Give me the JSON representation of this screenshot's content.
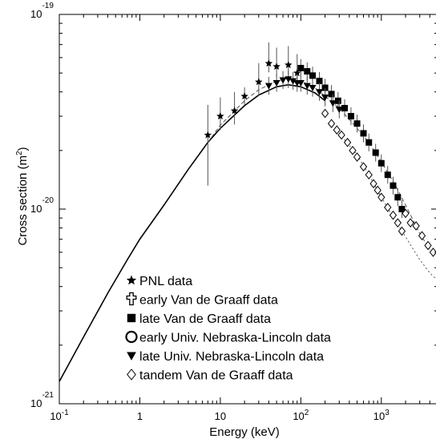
{
  "chart_data": {
    "type": "scatter",
    "xlabel": "Energy (keV)",
    "ylabel_main": "Cross section (m",
    "ylabel_sup": "2",
    "ylabel_close": ")",
    "x_scale": "log",
    "y_scale": "log",
    "xlim": [
      0.1,
      5000
    ],
    "ylim": [
      1e-21,
      1e-19
    ],
    "grid": false,
    "legend_position": "bottom-center",
    "x_ticks": [
      {
        "value": 0.1,
        "base": "10",
        "exp": "-1"
      },
      {
        "value": 1,
        "base": "1",
        "exp": ""
      },
      {
        "value": 10,
        "base": "10",
        "exp": ""
      },
      {
        "value": 100,
        "base": "10",
        "exp": "2"
      },
      {
        "value": 1000,
        "base": "10",
        "exp": "3"
      }
    ],
    "y_ticks": [
      {
        "value": 1e-19,
        "base": "10",
        "exp": "-19"
      },
      {
        "value": 1e-20,
        "base": "10",
        "exp": "-20"
      },
      {
        "value": 1e-21,
        "base": "10",
        "exp": "-21"
      }
    ],
    "series": [
      {
        "name": "PNL data",
        "marker": "star",
        "points": [
          {
            "x": 7,
            "y": 2.4e-20,
            "err": [
              0.55,
              0.7
            ]
          },
          {
            "x": 10,
            "y": 3e-20,
            "err": [
              0.85,
              0.8
            ]
          },
          {
            "x": 15,
            "y": 3.2e-20,
            "err": [
              0.85,
              0.8
            ]
          },
          {
            "x": 20,
            "y": 3.8e-20
          },
          {
            "x": 30,
            "y": 4.5e-20,
            "err": [
              0.85,
              0.8
            ]
          },
          {
            "x": 40,
            "y": 5.6e-20,
            "err": [
              0.9,
              0.78
            ]
          },
          {
            "x": 50,
            "y": 5.4e-20,
            "err": [
              0.88,
              0.8
            ]
          },
          {
            "x": 70,
            "y": 5.5e-20,
            "err": [
              0.85,
              0.8
            ]
          },
          {
            "x": 90,
            "y": 5e-20,
            "err": [
              0.85,
              0.8
            ]
          }
        ]
      },
      {
        "name": "early Van de Graaff data",
        "marker": "cross",
        "points": []
      },
      {
        "name": "late Van de Graaff data",
        "marker": "square",
        "points": [
          {
            "x": 100,
            "y": 5.3e-20
          },
          {
            "x": 120,
            "y": 5.1e-20
          },
          {
            "x": 140,
            "y": 4.85e-20
          },
          {
            "x": 170,
            "y": 4.55e-20
          },
          {
            "x": 200,
            "y": 4.2e-20
          },
          {
            "x": 240,
            "y": 3.9e-20
          },
          {
            "x": 290,
            "y": 3.6e-20
          },
          {
            "x": 350,
            "y": 3.3e-20
          },
          {
            "x": 420,
            "y": 3e-20
          },
          {
            "x": 500,
            "y": 2.75e-20
          },
          {
            "x": 600,
            "y": 2.45e-20
          },
          {
            "x": 700,
            "y": 2.2e-20
          },
          {
            "x": 850,
            "y": 1.95e-20
          },
          {
            "x": 1000,
            "y": 1.72e-20
          },
          {
            "x": 1200,
            "y": 1.5e-20
          },
          {
            "x": 1400,
            "y": 1.32e-20
          },
          {
            "x": 1600,
            "y": 1.15e-20
          },
          {
            "x": 1800,
            "y": 1e-20
          }
        ]
      },
      {
        "name": "early Univ. Nebraska-Lincoln data",
        "marker": "circle",
        "points": []
      },
      {
        "name": "late Univ. Nebraska-Lincoln data",
        "marker": "triangle-down",
        "points": [
          {
            "x": 40,
            "y": 4.3e-20
          },
          {
            "x": 50,
            "y": 4.45e-20
          },
          {
            "x": 60,
            "y": 4.6e-20
          },
          {
            "x": 70,
            "y": 4.65e-20
          },
          {
            "x": 80,
            "y": 4.55e-20
          },
          {
            "x": 90,
            "y": 4.45e-20
          },
          {
            "x": 100,
            "y": 4.45e-20
          },
          {
            "x": 120,
            "y": 4.3e-20
          },
          {
            "x": 140,
            "y": 4.2e-20
          },
          {
            "x": 170,
            "y": 4e-20
          },
          {
            "x": 200,
            "y": 3.75e-20
          },
          {
            "x": 250,
            "y": 3.5e-20
          },
          {
            "x": 300,
            "y": 3.25e-20
          }
        ]
      },
      {
        "name": "tandem Van de Graaff data",
        "marker": "diamond",
        "points": [
          {
            "x": 200,
            "y": 3.1e-20
          },
          {
            "x": 240,
            "y": 2.75e-20
          },
          {
            "x": 280,
            "y": 2.55e-20
          },
          {
            "x": 320,
            "y": 2.4e-20
          },
          {
            "x": 380,
            "y": 2.2e-20
          },
          {
            "x": 440,
            "y": 2e-20
          },
          {
            "x": 500,
            "y": 1.85e-20
          },
          {
            "x": 600,
            "y": 1.65e-20
          },
          {
            "x": 700,
            "y": 1.5e-20
          },
          {
            "x": 800,
            "y": 1.35e-20
          },
          {
            "x": 900,
            "y": 1.25e-20
          },
          {
            "x": 1000,
            "y": 1.15e-20
          },
          {
            "x": 1200,
            "y": 1.02e-20
          },
          {
            "x": 1400,
            "y": 9.3e-21
          },
          {
            "x": 1600,
            "y": 8.5e-21
          },
          {
            "x": 1800,
            "y": 7.7e-21
          },
          {
            "x": 2000,
            "y": 9.5e-21
          },
          {
            "x": 2300,
            "y": 8.5e-21
          },
          {
            "x": 2700,
            "y": 8.2e-21
          },
          {
            "x": 3200,
            "y": 7.3e-21
          },
          {
            "x": 3800,
            "y": 6.5e-21
          },
          {
            "x": 4400,
            "y": 6e-21
          }
        ]
      }
    ],
    "curves": [
      {
        "style": "solid",
        "points": [
          [
            0.1,
            1.3e-21
          ],
          [
            0.2,
            2.2e-21
          ],
          [
            0.4,
            3.7e-21
          ],
          [
            0.7,
            5.5e-21
          ],
          [
            1,
            7e-21
          ],
          [
            2,
            1.05e-20
          ],
          [
            4,
            1.6e-20
          ],
          [
            7,
            2.2e-20
          ],
          [
            10,
            2.6e-20
          ],
          [
            20,
            3.4e-20
          ],
          [
            30,
            3.85e-20
          ],
          [
            50,
            4.25e-20
          ],
          [
            70,
            4.35e-20
          ],
          [
            100,
            4.25e-20
          ],
          [
            150,
            3.95e-20
          ],
          [
            200,
            3.6e-20
          ]
        ]
      },
      {
        "style": "dashed",
        "points": [
          [
            7,
            2.2e-20
          ],
          [
            10,
            2.7e-20
          ],
          [
            20,
            3.6e-20
          ],
          [
            30,
            4.1e-20
          ],
          [
            50,
            4.55e-20
          ],
          [
            70,
            4.7e-20
          ],
          [
            100,
            4.55e-20
          ],
          [
            150,
            4.2e-20
          ],
          [
            200,
            3.8e-20
          ],
          [
            300,
            3.3e-20
          ],
          [
            500,
            2.6e-20
          ],
          [
            700,
            2.2e-20
          ],
          [
            1000,
            1.75e-20
          ],
          [
            1500,
            1.32e-20
          ],
          [
            2000,
            1.05e-20
          ],
          [
            3000,
            7.5e-21
          ],
          [
            4000,
            6.2e-21
          ]
        ]
      },
      {
        "style": "dotted",
        "points": [
          [
            300,
            2.45e-20
          ],
          [
            500,
            1.9e-20
          ],
          [
            700,
            1.5e-20
          ],
          [
            1000,
            1.15e-20
          ],
          [
            1500,
            8.7e-21
          ],
          [
            2000,
            7.2e-21
          ],
          [
            3000,
            5.5e-21
          ],
          [
            4000,
            4.7e-21
          ],
          [
            5000,
            4.3e-21
          ]
        ]
      }
    ]
  }
}
